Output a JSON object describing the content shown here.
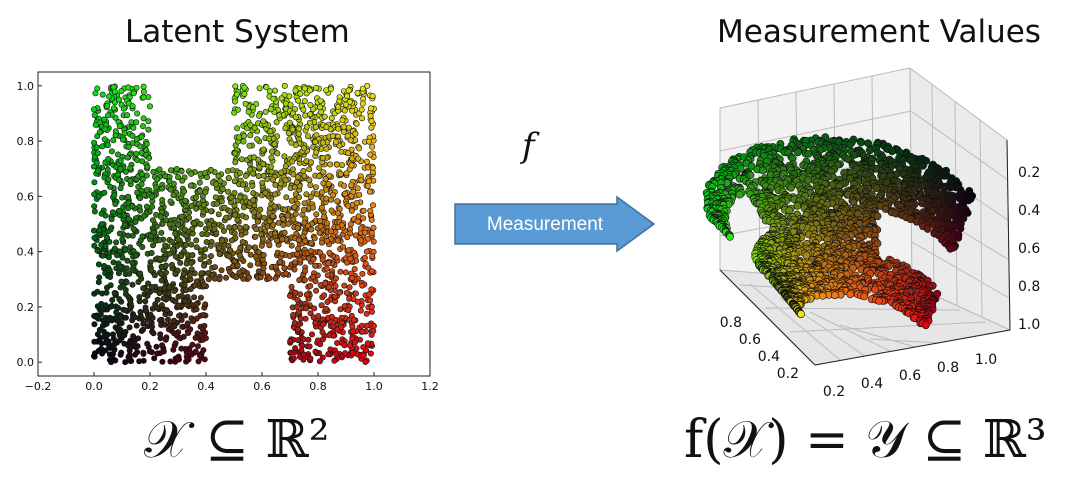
{
  "left": {
    "title": "Latent System",
    "formula": "𝒳 ⊆ ℝ²"
  },
  "arrow": {
    "function_label": "f",
    "label": "Measurement",
    "color": "#5b9bd5"
  },
  "right": {
    "title": "Measurement Values",
    "formula": "f(𝒳) = 𝒴 ⊆ ℝ³"
  },
  "chart_data": [
    {
      "type": "scatter",
      "shape": "H-shaped point cloud in the unit square",
      "xlim": [
        -0.2,
        1.2
      ],
      "ylim": [
        -0.05,
        1.05
      ],
      "x_ticks": [
        "−0.2",
        "0.0",
        "0.2",
        "0.4",
        "0.6",
        "0.8",
        "1.0",
        "1.2"
      ],
      "y_ticks": [
        "0.0",
        "0.2",
        "0.4",
        "0.6",
        "0.8",
        "1.0"
      ],
      "regions": [
        {
          "x": [
            0.0,
            0.2
          ],
          "y": [
            0.0,
            1.0
          ]
        },
        {
          "x": [
            0.2,
            0.4
          ],
          "y": [
            0.0,
            0.7
          ]
        },
        {
          "x": [
            0.4,
            0.5
          ],
          "y": [
            0.3,
            0.7
          ]
        },
        {
          "x": [
            0.5,
            0.7
          ],
          "y": [
            0.3,
            1.0
          ]
        },
        {
          "x": [
            0.7,
            1.0
          ],
          "y": [
            0.0,
            1.0
          ]
        }
      ],
      "color_mapping": "red = x, green = y, blue = 0",
      "grid": false
    },
    {
      "type": "scatter3d",
      "description": "the same points embedded in 3-D by f, forming a curved folded sheet",
      "x_ticks": [
        "0.2",
        "0.4",
        "0.6",
        "0.8",
        "1.0"
      ],
      "y_ticks": [
        "0.2",
        "0.4",
        "0.6",
        "0.8"
      ],
      "z_ticks": [
        "0.2",
        "0.4",
        "0.6",
        "0.8",
        "1.0"
      ],
      "color_mapping": "red = x, green = y, blue = 0",
      "grid": true
    }
  ]
}
